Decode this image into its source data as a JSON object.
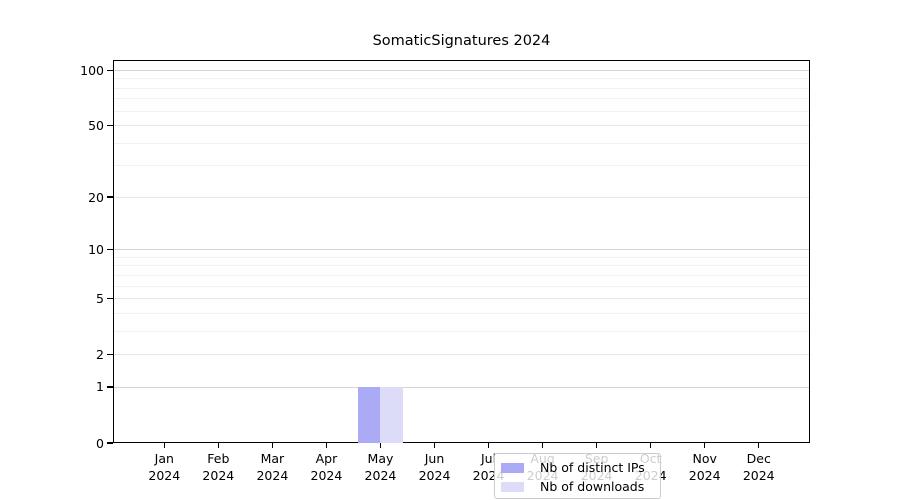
{
  "title": "SomaticSignatures 2024",
  "chart_data": {
    "type": "bar",
    "title": "SomaticSignatures 2024",
    "categories": [
      "Jan 2024",
      "Feb 2024",
      "Mar 2024",
      "Apr 2024",
      "May 2024",
      "Jun 2024",
      "Jul 2024",
      "Aug 2024",
      "Sep 2024",
      "Oct 2024",
      "Nov 2024",
      "Dec 2024"
    ],
    "series": [
      {
        "name": "Nb of distinct IPs",
        "color": "#aaaaf5",
        "values": [
          0,
          0,
          0,
          0,
          1,
          0,
          0,
          0,
          0,
          0,
          0,
          0
        ]
      },
      {
        "name": "Nb of downloads",
        "color": "#dcdcf8",
        "values": [
          0,
          0,
          0,
          0,
          1,
          0,
          0,
          0,
          0,
          0,
          0,
          0
        ]
      }
    ],
    "xlabel": "",
    "ylabel": "",
    "y_scale": "log1p",
    "y_ticks": [
      0,
      1,
      2,
      5,
      10,
      20,
      50,
      100
    ],
    "ylim": [
      0,
      120
    ],
    "grid": true,
    "legend_position": "inside-bottom-center-over-may"
  },
  "legend": {
    "items": [
      {
        "label": "Nb of distinct IPs",
        "color": "#aaaaf5"
      },
      {
        "label": "Nb of downloads",
        "color": "#dcdcf8"
      }
    ]
  },
  "colors": {
    "background": "#ffffff",
    "spine": "#000000",
    "grid_major": "#d4d4d4",
    "grid_mid": "#e7e7e7",
    "grid_minor": "#f1f1f1",
    "bar_distinct_ips": "#aaaaf5",
    "bar_downloads": "#dcdcf8",
    "legend_border": "#cccccc"
  }
}
